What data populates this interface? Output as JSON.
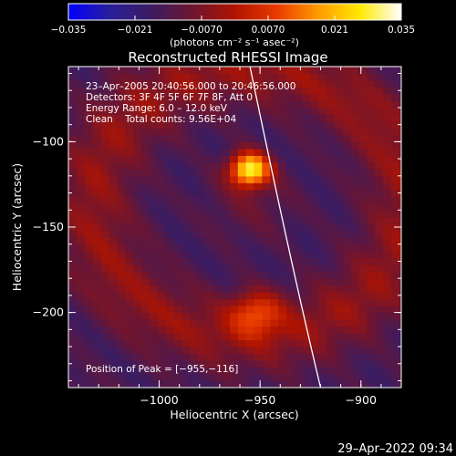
{
  "colorbar": {
    "ticks": [
      -0.035,
      -0.021,
      -0.007,
      0.007,
      0.021,
      0.035
    ],
    "tick_labels": [
      "−0.035",
      "−0.021",
      "−0.0070",
      "0.0070",
      "0.021",
      "0.035"
    ],
    "unit_label": "(photons cm⁻² s⁻¹ asec⁻²)",
    "range": [
      -0.035,
      0.035
    ],
    "colors": [
      "#0000ff",
      "#2a1f9a",
      "#3c1c60",
      "#6e1530",
      "#b01400",
      "#e83a00",
      "#ff9a00",
      "#ffe800",
      "#ffffff"
    ]
  },
  "chart_data": {
    "type": "heatmap",
    "title": "Reconstructed RHESSI Image",
    "xlabel": "Heliocentric X (arcsec)",
    "ylabel": "Heliocentric Y (arcsec)",
    "xlim": [
      -1045,
      -880
    ],
    "ylim": [
      -244,
      -56
    ],
    "xticks": [
      -1000,
      -950,
      -900
    ],
    "xtick_labels": [
      "−1000",
      "−950",
      "−900"
    ],
    "yticks": [
      -100,
      -150,
      -200
    ],
    "ytick_labels": [
      "−100",
      "−150",
      "−200"
    ],
    "info_lines": [
      "23–Apr–2005 20:40:56.000 to 20:46:56.000",
      "Detectors: 3F 4F 5F 6F 7F 8F, Att 0",
      "Energy Range: 6.0 – 12.0 keV",
      "Clean    Total counts: 9.56E+04"
    ],
    "peak_label": "Position of Peak = [−955,−116]",
    "peak": {
      "x": -955,
      "y": -116,
      "value": 0.035
    },
    "sources": [
      {
        "x": -955,
        "y": -116,
        "peak": 0.035,
        "sigma": 7
      },
      {
        "x": -952,
        "y": -200,
        "peak": 0.016,
        "sigma": 9
      }
    ],
    "limb_line": [
      {
        "x": -955,
        "y": -56
      },
      {
        "x": -935,
        "y": -170
      },
      {
        "x": -920,
        "y": -244
      }
    ]
  },
  "footer": {
    "timestamp": "29–Apr–2022 09:34"
  }
}
